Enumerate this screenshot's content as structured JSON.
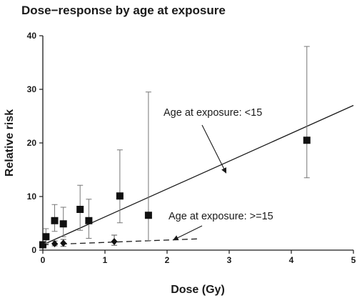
{
  "chart_data": {
    "type": "scatter",
    "title": "Dose−response by age at exposure",
    "xlabel": "Dose (Gy)",
    "ylabel": "Relative risk",
    "xlim": [
      0,
      5
    ],
    "ylim": [
      0,
      40
    ],
    "xticks": [
      "0",
      "1",
      "2",
      "3",
      "4",
      "5"
    ],
    "yticks": [
      "0",
      "10",
      "20",
      "30",
      "40"
    ],
    "grid": false,
    "series": [
      {
        "marker": "square",
        "points": [
          {
            "x": 0.0,
            "y": 1.0,
            "lo": 1.0,
            "hi": 1.0
          },
          {
            "x": 0.05,
            "y": 2.5,
            "lo": 1.3,
            "hi": 4.0
          },
          {
            "x": 0.19,
            "y": 5.5,
            "lo": 3.5,
            "hi": 8.5
          },
          {
            "x": 0.33,
            "y": 4.9,
            "lo": 2.5,
            "hi": 8.0
          },
          {
            "x": 0.6,
            "y": 7.6,
            "lo": 3.7,
            "hi": 12.1
          },
          {
            "x": 0.74,
            "y": 5.5,
            "lo": 2.2,
            "hi": 9.5
          },
          {
            "x": 1.24,
            "y": 10.1,
            "lo": 5.1,
            "hi": 18.7
          },
          {
            "x": 1.7,
            "y": 6.5,
            "lo": 1.8,
            "hi": 29.5
          },
          {
            "x": 4.25,
            "y": 20.5,
            "lo": 13.5,
            "hi": 38.0
          }
        ],
        "fit_line": {
          "x": [
            0,
            5
          ],
          "y": [
            1.0,
            27.0
          ],
          "style": "solid"
        }
      },
      {
        "marker": "diamond",
        "points": [
          {
            "x": 0.0,
            "y": 1.0,
            "lo": 1.0,
            "hi": 1.0
          },
          {
            "x": 0.19,
            "y": 1.2,
            "lo": 0.8,
            "hi": 1.7
          },
          {
            "x": 0.33,
            "y": 1.3,
            "lo": 0.7,
            "hi": 2.0
          },
          {
            "x": 1.15,
            "y": 1.6,
            "lo": 0.9,
            "hi": 2.8
          }
        ],
        "fit_line": {
          "x": [
            0,
            2.5
          ],
          "y": [
            1.0,
            2.1
          ],
          "style": "dashed"
        }
      }
    ],
    "annotations": [
      {
        "text": "Age at exposure: <15",
        "arrow_to": {
          "x": 2.95,
          "y": 14.4
        }
      },
      {
        "text": "Age at exposure: >=15",
        "arrow_to": {
          "x": 2.1,
          "y": 1.9
        }
      }
    ]
  }
}
